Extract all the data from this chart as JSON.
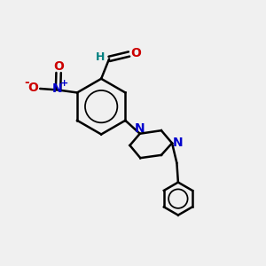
{
  "bg_color": "#f0f0f0",
  "line_color": "#000000",
  "bond_width": 1.8,
  "n_color": "#0000cc",
  "o_color": "#cc0000",
  "h_color": "#008080",
  "figsize": [
    3.0,
    3.0
  ],
  "dpi": 100,
  "xlim": [
    0,
    10
  ],
  "ylim": [
    0,
    10
  ]
}
